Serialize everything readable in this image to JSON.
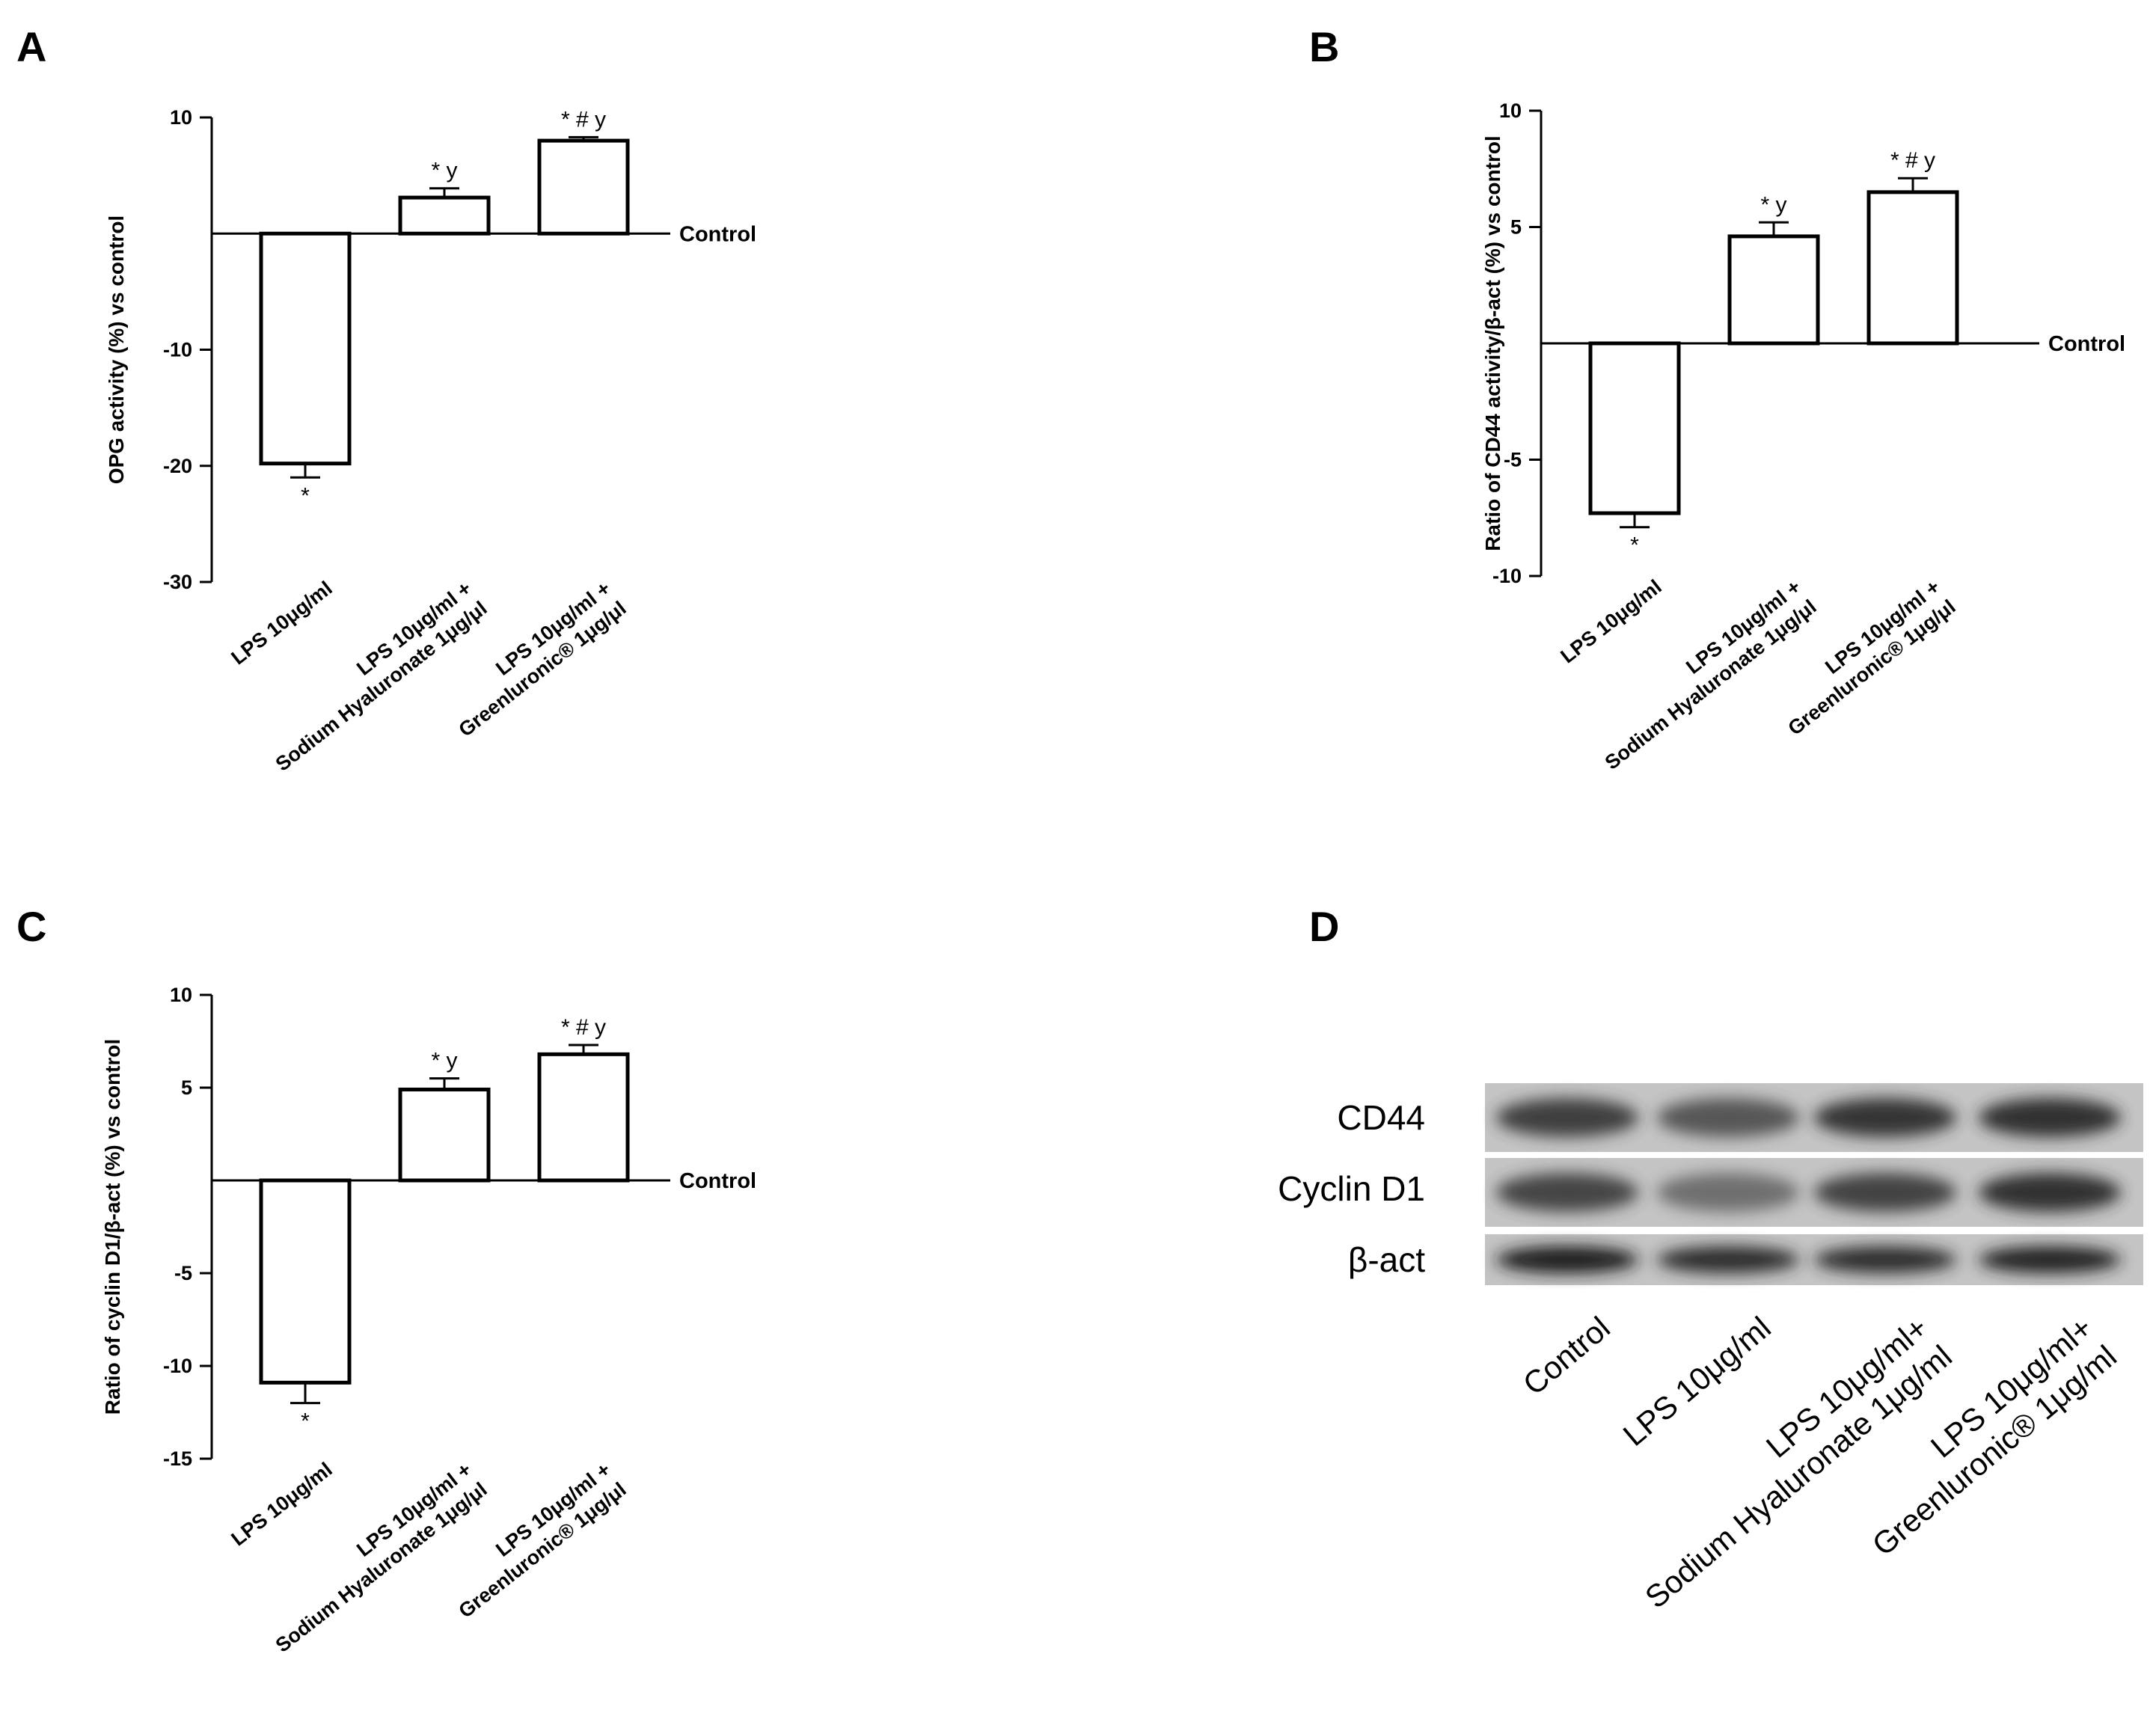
{
  "panels": [
    {
      "letter": "A",
      "chart_data": {
        "type": "bar",
        "categories": [
          [
            "LPS 10μg/ml"
          ],
          [
            "LPS 10μg/ml +",
            "Sodium Hyaluronate 1μg/μl"
          ],
          [
            "LPS 10μg/ml +",
            "Greenluronic® 1μg/μl"
          ]
        ],
        "values": [
          -19.8,
          3.1,
          8.0
        ],
        "errors": [
          1.2,
          0.8,
          0.3
        ],
        "annotations": [
          "*",
          "* y",
          "* # y"
        ],
        "ylabel": "OPG activity (%) vs control",
        "baseline_label": "Control",
        "ylim": [
          -30,
          10
        ],
        "yticks": [
          10,
          -10,
          -20,
          -30
        ]
      }
    },
    {
      "letter": "B",
      "chart_data": {
        "type": "bar",
        "categories": [
          [
            "LPS 10μg/ml"
          ],
          [
            "LPS 10μg/ml +",
            "Sodium Hyaluronate 1μg/μl"
          ],
          [
            "LPS 10μg/ml +",
            "Greenluronic® 1μg/μl"
          ]
        ],
        "values": [
          -7.3,
          4.6,
          6.5
        ],
        "errors": [
          0.6,
          0.6,
          0.6
        ],
        "annotations": [
          "*",
          "* y",
          "* # y"
        ],
        "ylabel": "Ratio of CD44 activity/β-act (%) vs control",
        "baseline_label": "Control",
        "ylim": [
          -10,
          10
        ],
        "yticks": [
          10,
          5,
          -5,
          -10
        ]
      }
    },
    {
      "letter": "C",
      "chart_data": {
        "type": "bar",
        "categories": [
          [
            "LPS 10μg/ml"
          ],
          [
            "LPS 10μg/ml +",
            "Sodium Hyaluronate 1μg/μl"
          ],
          [
            "LPS 10μg/ml +",
            "Greenluronic® 1μg/μl"
          ]
        ],
        "values": [
          -10.9,
          4.9,
          6.8
        ],
        "errors": [
          1.1,
          0.6,
          0.5
        ],
        "annotations": [
          "*",
          "* y",
          "* # y"
        ],
        "ylabel": "Ratio of cyclin D1/β-act (%) vs control",
        "baseline_label": "Control",
        "ylim": [
          -15,
          10
        ],
        "yticks": [
          10,
          5,
          -5,
          -10,
          -15
        ]
      }
    }
  ],
  "blot": {
    "letter": "D",
    "rows": [
      "CD44",
      "Cyclin D1",
      "β-act"
    ],
    "lanes": [
      [
        "Control"
      ],
      [
        "LPS 10μg/ml"
      ],
      [
        "LPS 10μg/ml+",
        "Sodium Hyaluronate 1μg/ml"
      ],
      [
        "LPS 10μg/ml+",
        "Greenluronic® 1μg/ml"
      ]
    ],
    "band_intensity": [
      [
        0.75,
        0.55,
        0.82,
        0.85
      ],
      [
        0.7,
        0.35,
        0.72,
        0.85
      ],
      [
        1.0,
        0.9,
        0.88,
        0.95
      ]
    ]
  }
}
